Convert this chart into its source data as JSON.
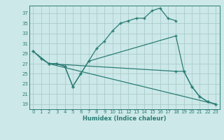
{
  "background_color": "#cde8e8",
  "grid_color": "#aacccc",
  "line_color": "#2a7d75",
  "xlim": [
    -0.5,
    23.5
  ],
  "ylim": [
    18.0,
    38.5
  ],
  "xticks": [
    0,
    1,
    2,
    3,
    4,
    5,
    6,
    7,
    8,
    9,
    10,
    11,
    12,
    13,
    14,
    15,
    16,
    17,
    18,
    19,
    20,
    21,
    22,
    23
  ],
  "yticks": [
    19,
    21,
    23,
    25,
    27,
    29,
    31,
    33,
    35,
    37
  ],
  "xlabel": "Humidex (Indice chaleur)",
  "line1_x": [
    0,
    1,
    2,
    3,
    4,
    5,
    6,
    7,
    8,
    9,
    10,
    11,
    12,
    13,
    14,
    15,
    16,
    17,
    18
  ],
  "line1_y": [
    29.5,
    28.0,
    27.0,
    27.0,
    26.5,
    22.5,
    25.0,
    27.5,
    30.0,
    31.5,
    33.5,
    35.0,
    35.5,
    36.0,
    36.0,
    37.5,
    38.0,
    36.0,
    35.5
  ],
  "line2_x": [
    0,
    2,
    3,
    4,
    5,
    6,
    7,
    18,
    19,
    20,
    21,
    22,
    23
  ],
  "line2_y": [
    29.5,
    27.0,
    27.0,
    26.5,
    22.5,
    25.0,
    27.5,
    32.5,
    25.5,
    22.5,
    20.5,
    19.5,
    19.0
  ],
  "line3_x": [
    2,
    23
  ],
  "line3_y": [
    27.0,
    19.0
  ],
  "line4_x": [
    2,
    18,
    19,
    20,
    21,
    22,
    23
  ],
  "line4_y": [
    27.0,
    25.5,
    25.5,
    22.5,
    20.5,
    19.5,
    19.0
  ],
  "label_fontsize": 5.0,
  "xlabel_fontsize": 6.0
}
